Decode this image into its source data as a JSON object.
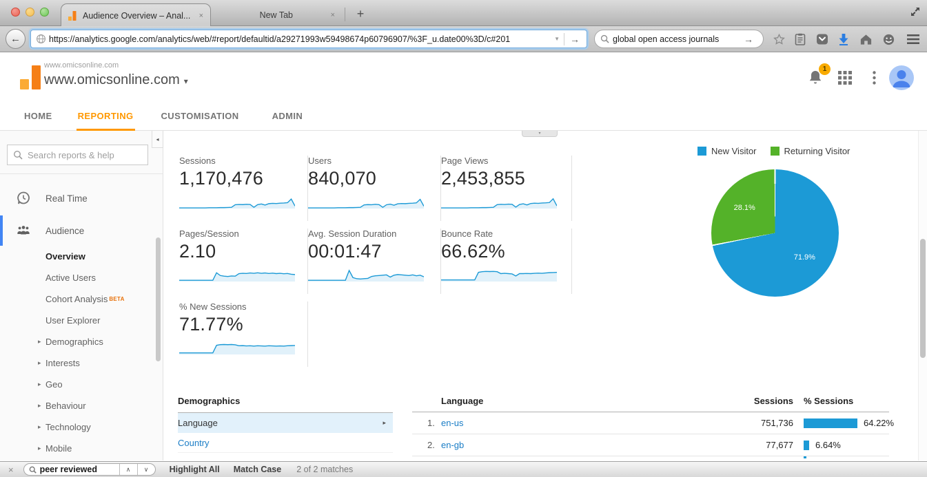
{
  "accent": {
    "ga_orange": "#ff9800",
    "logo_orange_dark": "#f57f17",
    "logo_orange_light": "#fbab35",
    "link_blue": "#1a7dc6",
    "spark_blue": "#1c9ad6",
    "spark_fill": "#e1f1fa",
    "active_blue_bar": "#4285f4",
    "badge_orange": "#f9ab00",
    "selected_row_bg": "#e2f1fb"
  },
  "browser": {
    "tabs": [
      {
        "title": "Audience Overview – Anal...",
        "close": "×",
        "active": true
      },
      {
        "title": "New Tab",
        "close": "×",
        "active": false
      }
    ],
    "new_tab_button": "+",
    "back_glyph": "←",
    "url": "https://analytics.google.com/analytics/web/#report/defaultid/a29271993w59498674p60796907/%3F_u.date00%3D/c#201",
    "url_dropdown_glyph": "▼",
    "url_go_glyph": "→",
    "search_value": "global open access journals",
    "search_go_glyph": "→"
  },
  "ga_header": {
    "account": "www.omicsonline.com",
    "property": "www.omicsonline.com",
    "caret": "▾",
    "notification_count": "1"
  },
  "ga_nav": {
    "items": [
      {
        "label": "HOME"
      },
      {
        "label": "REPORTING"
      },
      {
        "label": "CUSTOMISATION"
      },
      {
        "label": "ADMIN"
      }
    ],
    "active": "REPORTING"
  },
  "sidebar": {
    "search_placeholder": "Search reports & help",
    "collapse_icon": "◂",
    "expander_icon": "▸",
    "handle_icon": "▾",
    "realtime_label": "Real Time",
    "audience_label": "Audience",
    "audience_children": [
      {
        "label": "Overview",
        "current": true
      },
      {
        "label": "Active Users"
      },
      {
        "label": "Cohort Analysis",
        "badge": "BETA"
      },
      {
        "label": "User Explorer"
      },
      {
        "label": "Demographics",
        "expandable": true
      },
      {
        "label": "Interests",
        "expandable": true
      },
      {
        "label": "Geo",
        "expandable": true
      },
      {
        "label": "Behaviour",
        "expandable": true
      },
      {
        "label": "Technology",
        "expandable": true
      },
      {
        "label": "Mobile",
        "expandable": true
      }
    ]
  },
  "metrics": [
    {
      "label": "Sessions",
      "value": "1,170,476"
    },
    {
      "label": "Users",
      "value": "840,070"
    },
    {
      "label": "Page Views",
      "value": "2,453,855"
    },
    {
      "label": "Pages/Session",
      "value": "2.10"
    },
    {
      "label": "Avg. Session Duration",
      "value": "00:01:47"
    },
    {
      "label": "Bounce Rate",
      "value": "66.62%"
    },
    {
      "label": "% New Sessions",
      "value": "71.77%"
    }
  ],
  "chart_data": [
    {
      "type": "pie",
      "title": "New vs Returning Visitors",
      "legend_position": "top",
      "start_angle_deg": 0,
      "direction": "clockwise",
      "slices": [
        {
          "label": "New Visitor",
          "value": 71.9,
          "pct_label": "71.9%",
          "color": "#1c9ad6"
        },
        {
          "label": "Returning Visitor",
          "value": 28.1,
          "pct_label": "28.1%",
          "color": "#54b229"
        }
      ]
    },
    {
      "type": "line",
      "subtype": "sparkline-set",
      "x": "time (daily, range of report)",
      "note": "values normalized 0-100 of each sparkline max",
      "series": [
        {
          "name": "Sessions",
          "points": [
            4,
            4,
            4,
            4,
            4,
            4,
            4,
            4,
            5,
            5,
            5,
            6,
            6,
            7,
            8,
            24,
            26,
            25,
            27,
            26,
            8,
            25,
            29,
            22,
            31,
            33,
            32,
            34,
            35,
            37,
            60,
            16
          ]
        },
        {
          "name": "Users",
          "points": [
            4,
            4,
            4,
            4,
            4,
            4,
            4,
            4,
            5,
            5,
            5,
            6,
            6,
            7,
            8,
            23,
            25,
            24,
            27,
            25,
            8,
            24,
            28,
            21,
            30,
            32,
            31,
            33,
            34,
            36,
            58,
            15
          ]
        },
        {
          "name": "Page Views",
          "points": [
            4,
            4,
            4,
            4,
            4,
            4,
            4,
            4,
            5,
            5,
            5,
            6,
            6,
            7,
            8,
            25,
            27,
            26,
            28,
            27,
            9,
            26,
            30,
            23,
            32,
            34,
            33,
            35,
            36,
            38,
            62,
            17
          ]
        },
        {
          "name": "Pages/Session",
          "points": [
            8,
            8,
            8,
            8,
            8,
            8,
            8,
            8,
            8,
            8,
            55,
            38,
            34,
            32,
            35,
            34,
            50,
            52,
            51,
            54,
            52,
            55,
            52,
            54,
            51,
            53,
            50,
            52,
            49,
            51,
            46,
            44
          ]
        },
        {
          "name": "Avg. Session Duration",
          "points": [
            8,
            8,
            8,
            8,
            8,
            8,
            8,
            8,
            8,
            8,
            8,
            70,
            25,
            18,
            16,
            18,
            20,
            32,
            36,
            38,
            40,
            42,
            28,
            40,
            44,
            42,
            40,
            38,
            42,
            36,
            40,
            30
          ]
        },
        {
          "name": "Bounce Rate",
          "points": [
            10,
            10,
            10,
            10,
            10,
            10,
            10,
            10,
            10,
            10,
            58,
            62,
            64,
            63,
            64,
            62,
            50,
            52,
            50,
            48,
            35,
            50,
            50,
            51,
            50,
            52,
            53,
            52,
            54,
            56,
            57,
            58
          ]
        },
        {
          "name": "% New Sessions",
          "points": [
            10,
            10,
            10,
            10,
            10,
            10,
            10,
            10,
            10,
            10,
            58,
            62,
            63,
            62,
            63,
            61,
            55,
            56,
            54,
            55,
            53,
            55,
            54,
            53,
            55,
            54,
            53,
            54,
            53,
            55,
            56,
            57
          ]
        }
      ]
    }
  ],
  "demographics": {
    "title": "Demographics",
    "arrow": "▸",
    "items": [
      {
        "label": "Language",
        "selected": true
      },
      {
        "label": "Country"
      }
    ]
  },
  "language_table": {
    "col_language": "Language",
    "col_sessions": "Sessions",
    "col_pct": "% Sessions",
    "rows": [
      {
        "rank": "1.",
        "language": "en-us",
        "sessions": "751,736",
        "pct": "64.22%",
        "pct_value": 64.22
      },
      {
        "rank": "2.",
        "language": "en-gb",
        "sessions": "77,677",
        "pct": "6.64%",
        "pct_value": 6.64
      }
    ]
  },
  "find_bar": {
    "close": "×",
    "query": "peer reviewed",
    "prev": "∧",
    "next": "∨",
    "highlight_all": "Highlight All",
    "match_case": "Match Case",
    "status": "2 of 2 matches"
  }
}
